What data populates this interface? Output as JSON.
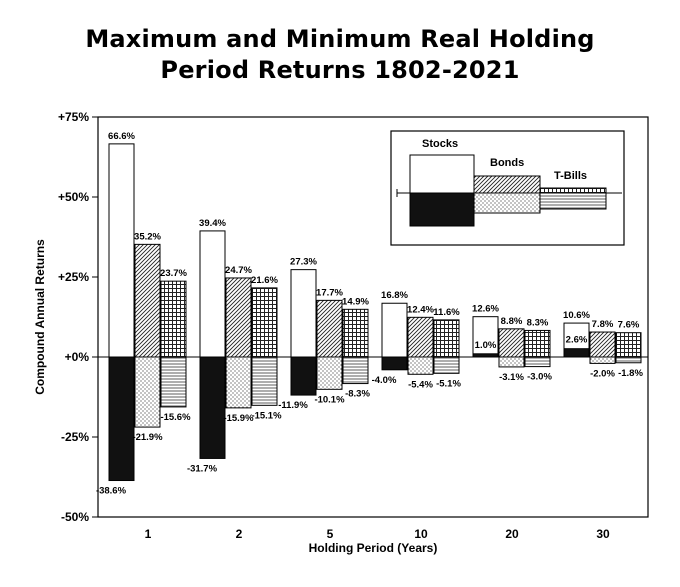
{
  "chart_data": {
    "type": "bar",
    "title_line1": "Maximum and Minimum Real Holding",
    "title_line2": "Period Returns 1802-2021",
    "xlabel": "Holding Period (Years)",
    "ylabel": "Compound Annual Returns",
    "ylim": [
      -50,
      75
    ],
    "y_ticks": [
      75,
      50,
      25,
      0,
      -25,
      -50
    ],
    "y_tick_labels": [
      "+75%",
      "+50%",
      "+25%",
      "+0%",
      "-25%",
      "-50%"
    ],
    "categories": [
      "1",
      "2",
      "5",
      "10",
      "20",
      "30"
    ],
    "series": [
      {
        "name": "Stocks",
        "max": [
          66.6,
          39.4,
          27.3,
          16.8,
          12.6,
          10.6
        ],
        "min": [
          -38.6,
          -31.7,
          -11.9,
          -4.0,
          1.0,
          2.6
        ],
        "max_labels": [
          "66.6%",
          "39.4%",
          "27.3%",
          "16.8%",
          "12.6%",
          "10.6%"
        ],
        "min_labels": [
          "-38.6%",
          "-31.7%",
          "-11.9%",
          "-4.0%",
          "1.0%",
          "2.6%"
        ]
      },
      {
        "name": "Bonds",
        "max": [
          35.2,
          24.7,
          17.7,
          12.4,
          8.8,
          7.8
        ],
        "min": [
          -21.9,
          -15.9,
          -10.1,
          -5.4,
          -3.1,
          -2.0
        ],
        "max_labels": [
          "35.2%",
          "24.7%",
          "17.7%",
          "12.4%",
          "8.8%",
          "7.8%"
        ],
        "min_labels": [
          "-21.9%",
          "-15.9%",
          "-10.1%",
          "-5.4%",
          "-3.1%",
          "-2.0%"
        ]
      },
      {
        "name": "T-Bills",
        "max": [
          23.7,
          21.6,
          14.9,
          11.6,
          8.3,
          7.6
        ],
        "min": [
          -15.6,
          -15.1,
          -8.3,
          -5.1,
          -3.0,
          -1.8
        ],
        "max_labels": [
          "23.7%",
          "21.6%",
          "14.9%",
          "11.6%",
          "8.3%",
          "7.6%"
        ],
        "min_labels": [
          "-15.6%",
          "-15.1%",
          "-8.3%",
          "-5.1%",
          "-3.0%",
          "-1.8%"
        ]
      }
    ],
    "grid": false,
    "legend_position": "top-right",
    "colors": {
      "stocks_max": "#ffffff",
      "stocks_min": "#111111",
      "frame": "#000000"
    }
  }
}
